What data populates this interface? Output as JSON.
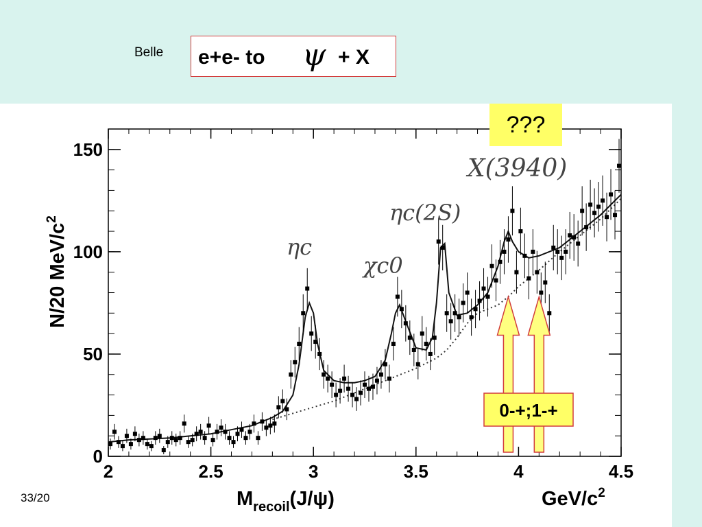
{
  "header": {
    "experiment": "Belle",
    "title_prefix": "e+e- to",
    "title_symbol": "ψ",
    "title_suffix": "+ X"
  },
  "footer": {
    "slide_number": "33/20"
  },
  "chart_data": {
    "type": "scatter",
    "title": "e+e- to ψ + X",
    "xlabel": "Mrecoil(J/ψ)",
    "xlabel_main": "M",
    "xlabel_sub": "recoil",
    "xlabel_tail": "(J/ψ)",
    "xunit": "GeV/c",
    "xunit_sup": "2",
    "ylabel": "N/20 MeV/c",
    "ylabel_sup": "2",
    "xlim": [
      2.0,
      4.5
    ],
    "ylim": [
      0,
      160
    ],
    "xticks": [
      "2",
      "2.5",
      "3",
      "3.5",
      "4",
      "4.5"
    ],
    "yticks": [
      "0",
      "50",
      "100",
      "150"
    ],
    "grid": false,
    "annotations": {
      "peak_etac": "ηc",
      "peak_chic0": "χc0",
      "peak_etac2s": "ηc(2S)",
      "peak_x3940": "X(3940)",
      "unknown_box": "???",
      "jpc_box": "0-+;1-+"
    },
    "arrows_at_x": [
      3.95,
      4.1
    ],
    "arrow_tip_y": 78,
    "annotation_color": "#ffff66",
    "arrow_color": "#ffff80",
    "series": [
      {
        "kind": "data",
        "x": [
          2.01,
          2.03,
          2.05,
          2.07,
          2.09,
          2.11,
          2.13,
          2.15,
          2.17,
          2.19,
          2.21,
          2.23,
          2.25,
          2.27,
          2.29,
          2.31,
          2.33,
          2.35,
          2.37,
          2.39,
          2.41,
          2.43,
          2.45,
          2.47,
          2.49,
          2.51,
          2.53,
          2.55,
          2.57,
          2.59,
          2.61,
          2.63,
          2.65,
          2.67,
          2.69,
          2.71,
          2.73,
          2.75,
          2.77,
          2.79,
          2.81,
          2.83,
          2.85,
          2.87,
          2.89,
          2.91,
          2.93,
          2.95,
          2.97,
          2.99,
          3.01,
          3.03,
          3.05,
          3.07,
          3.09,
          3.11,
          3.13,
          3.15,
          3.17,
          3.19,
          3.21,
          3.23,
          3.25,
          3.27,
          3.29,
          3.31,
          3.33,
          3.35,
          3.37,
          3.39,
          3.41,
          3.43,
          3.45,
          3.47,
          3.49,
          3.51,
          3.53,
          3.55,
          3.57,
          3.59,
          3.61,
          3.63,
          3.65,
          3.67,
          3.69,
          3.71,
          3.73,
          3.75,
          3.77,
          3.79,
          3.81,
          3.83,
          3.85,
          3.87,
          3.89,
          3.91,
          3.93,
          3.95,
          3.97,
          3.99,
          4.01,
          4.03,
          4.05,
          4.07,
          4.09,
          4.11,
          4.13,
          4.15,
          4.17,
          4.19,
          4.21,
          4.23,
          4.25,
          4.27,
          4.29,
          4.31,
          4.33,
          4.35,
          4.37,
          4.39,
          4.41,
          4.43,
          4.45,
          4.47,
          4.49
        ],
        "y": [
          6,
          12,
          7,
          5,
          10,
          6,
          11,
          8,
          9,
          6,
          5,
          9,
          10,
          3,
          7,
          9,
          8,
          9,
          16,
          7,
          8,
          11,
          12,
          9,
          15,
          8,
          12,
          14,
          12,
          9,
          7,
          11,
          13,
          9,
          12,
          16,
          9,
          17,
          14,
          15,
          16,
          24,
          27,
          23,
          40,
          46,
          55,
          70,
          82,
          60,
          56,
          50,
          40,
          38,
          35,
          30,
          32,
          38,
          33,
          30,
          28,
          31,
          35,
          33,
          34,
          37,
          40,
          45,
          38,
          55,
          78,
          72,
          65,
          58,
          52,
          45,
          60,
          55,
          50,
          58,
          105,
          102,
          70,
          66,
          70,
          68,
          75,
          80,
          68,
          72,
          76,
          82,
          78,
          93,
          86,
          95,
          100,
          106,
          120,
          90,
          110,
          98,
          87,
          100,
          90,
          80,
          85,
          70,
          102,
          100,
          97,
          100,
          108,
          107,
          104,
          120,
          112,
          123,
          119,
          122,
          125,
          117,
          128,
          118,
          142
        ]
      },
      {
        "kind": "fit",
        "x": [
          2.0,
          2.1,
          2.2,
          2.3,
          2.4,
          2.5,
          2.6,
          2.7,
          2.8,
          2.85,
          2.9,
          2.93,
          2.96,
          2.98,
          3.0,
          3.02,
          3.05,
          3.1,
          3.15,
          3.2,
          3.25,
          3.3,
          3.35,
          3.38,
          3.4,
          3.42,
          3.45,
          3.5,
          3.55,
          3.58,
          3.6,
          3.62,
          3.64,
          3.66,
          3.7,
          3.75,
          3.8,
          3.85,
          3.9,
          3.93,
          3.95,
          3.97,
          4.0,
          4.05,
          4.1,
          4.2,
          4.3,
          4.4,
          4.5
        ],
        "y": [
          7,
          8,
          8.5,
          9,
          10,
          11,
          13,
          15,
          19,
          22,
          30,
          45,
          68,
          75,
          70,
          55,
          42,
          37,
          36,
          36,
          37,
          39,
          47,
          60,
          70,
          74,
          66,
          53,
          52,
          58,
          75,
          102,
          104,
          80,
          69,
          70,
          74,
          80,
          93,
          105,
          110,
          105,
          100,
          97,
          98,
          102,
          110,
          118,
          128
        ]
      },
      {
        "kind": "background",
        "x": [
          2.8,
          2.9,
          3.0,
          3.1,
          3.2,
          3.3,
          3.4,
          3.5,
          3.6,
          3.65,
          3.7,
          3.75,
          3.8,
          3.85,
          3.9,
          3.95,
          4.0,
          4.1,
          4.2,
          4.3,
          4.4,
          4.5
        ],
        "y": [
          18,
          21,
          24,
          27,
          31,
          35,
          39,
          43,
          48,
          52,
          58,
          65,
          70,
          72,
          74,
          78,
          83,
          91,
          100,
          108,
          116,
          126
        ]
      }
    ]
  }
}
